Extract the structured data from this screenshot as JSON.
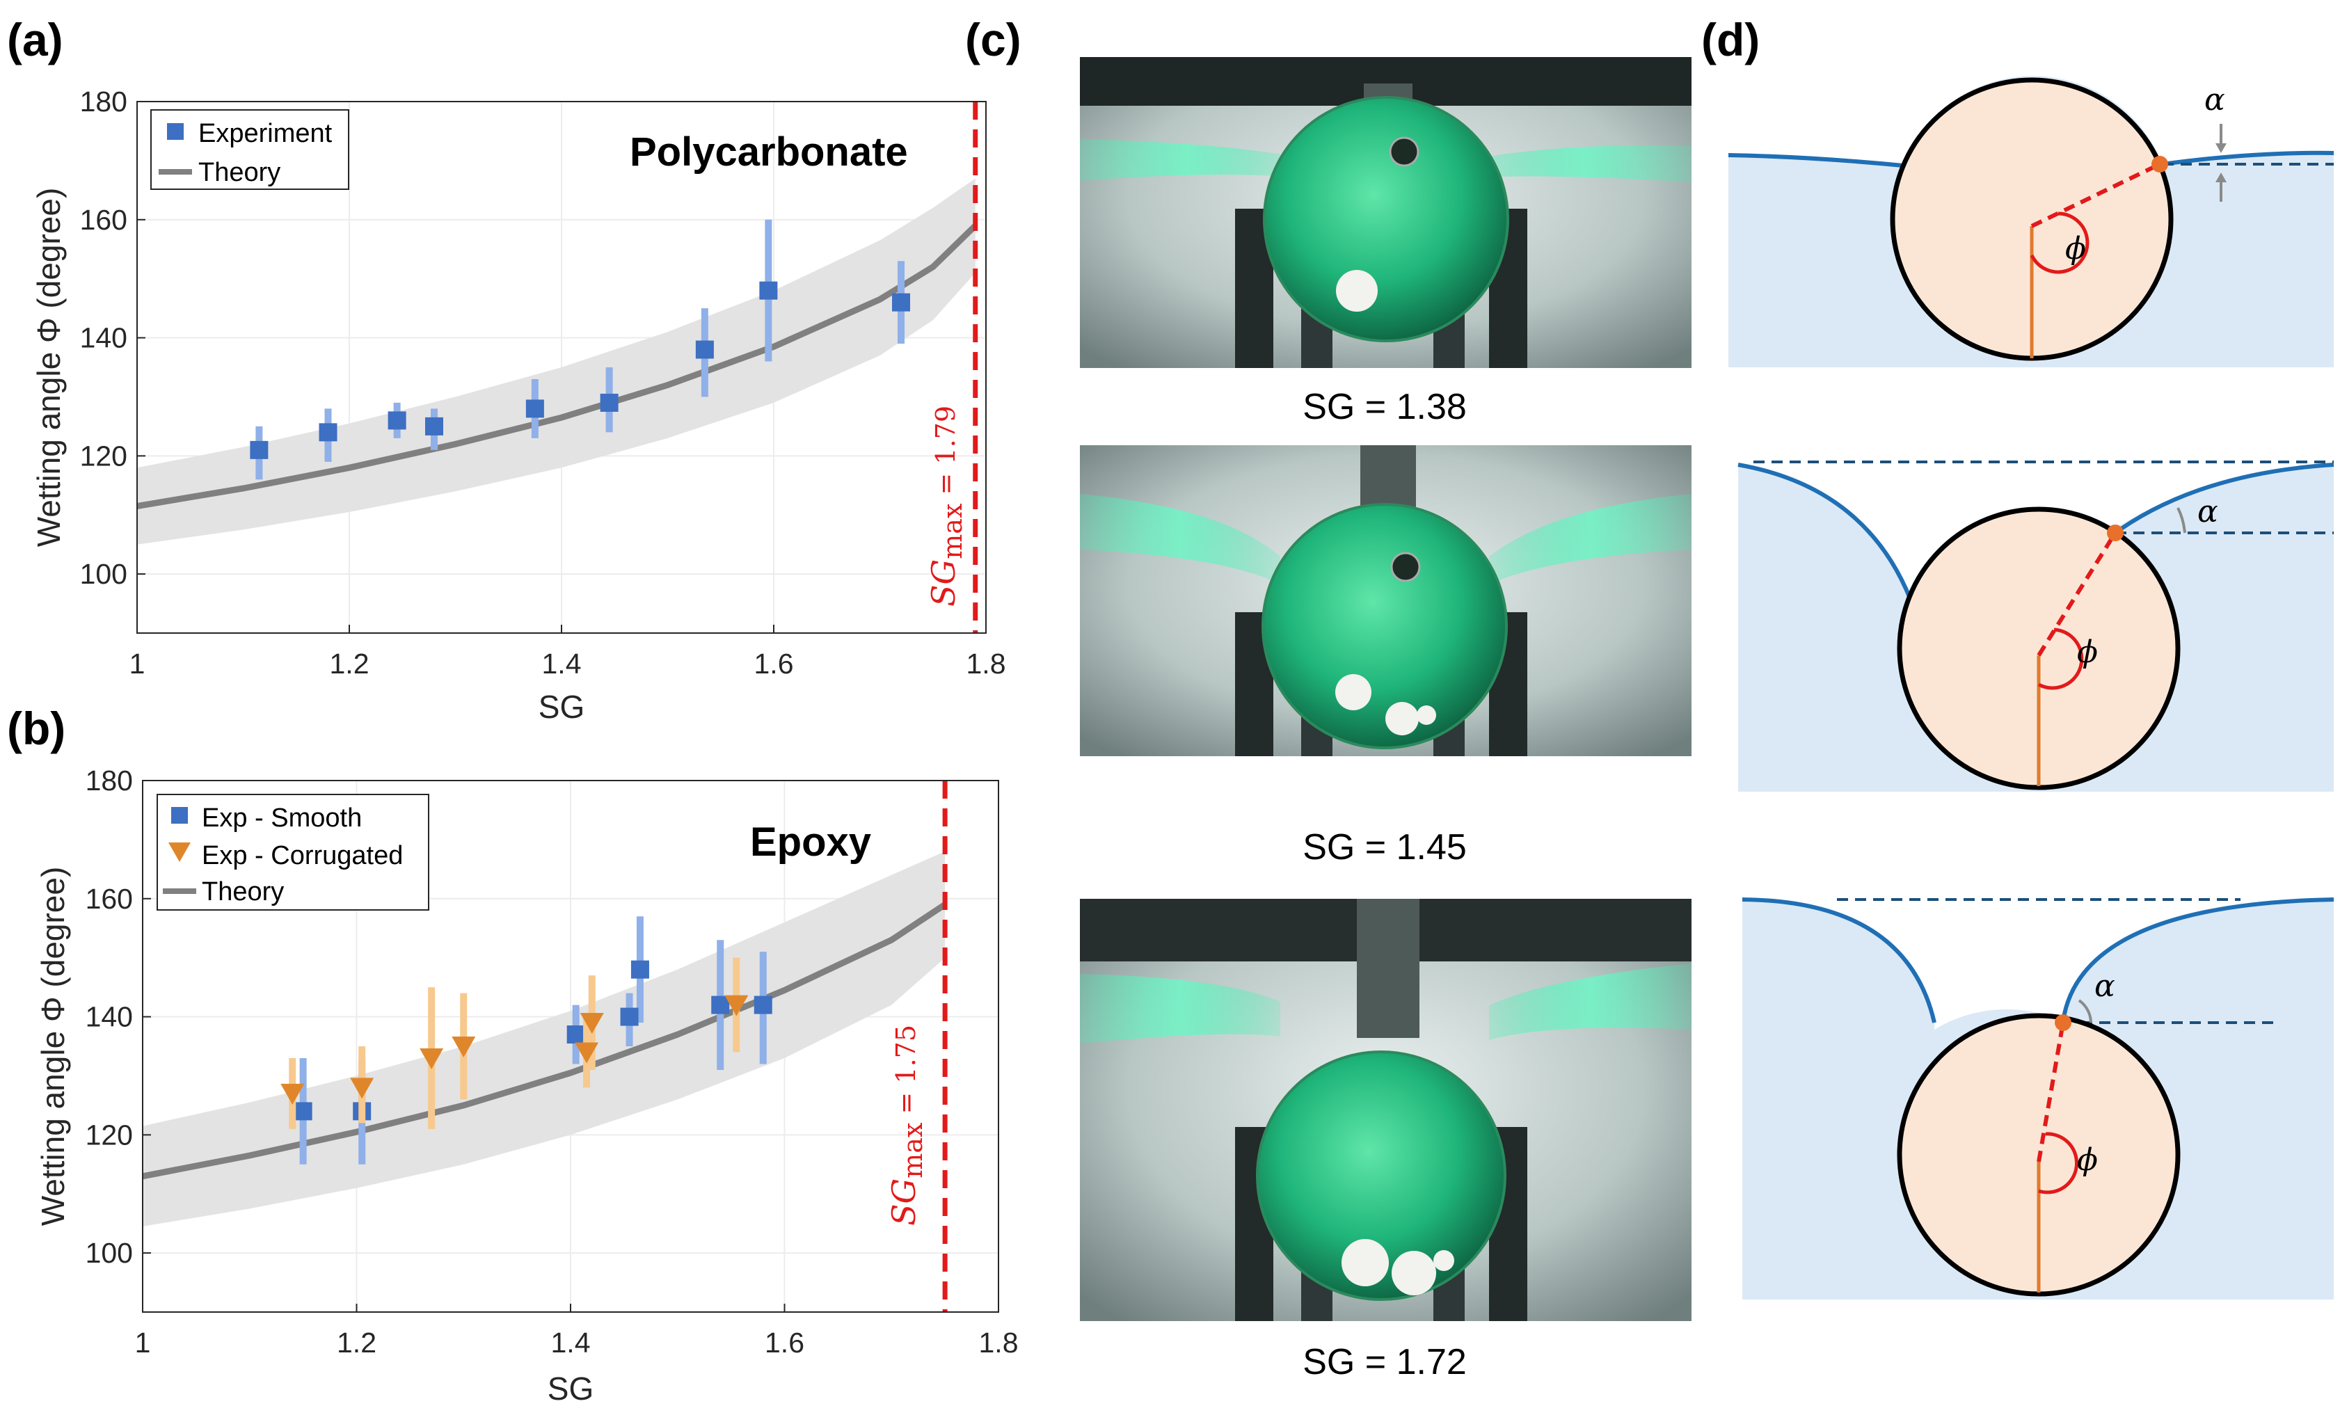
{
  "panels": {
    "a": "(a)",
    "b": "(b)",
    "c": "(c)",
    "d": "(d)"
  },
  "colors": {
    "experiment_marker": "#3d6fc2",
    "experiment_errorbar": "#8fb0e8",
    "corrugated_marker": "#e0862a",
    "corrugated_errorbar": "#f7c98e",
    "theory_line": "#808080",
    "theory_band": "#e3e3e3",
    "sgmax_line": "#e21a1a",
    "liquid": "#dbe9f6",
    "interface": "#1f6fb5",
    "sphere_fill": "#fbe6d6",
    "contact_point": "#e8702a",
    "dashed_reference": "#1c4f7a"
  },
  "chart_data": [
    {
      "type": "scatter",
      "panel": "a",
      "material_label": "Polycarbonate",
      "xlabel": "SG",
      "ylabel": "Wetting angle Φ (degree)",
      "xlim": [
        1,
        1.8
      ],
      "ylim": [
        90,
        180
      ],
      "xticks": [
        "1",
        "1.2",
        "1.4",
        "1.6",
        "1.8"
      ],
      "yticks": [
        "100",
        "120",
        "140",
        "160",
        "180"
      ],
      "grid": true,
      "legend_position": "top-left",
      "sgmax": {
        "x": 1.79,
        "label": "SG",
        "sub": "max",
        "value_text": " = 1.79"
      },
      "series": [
        {
          "name": "Experiment",
          "marker": "square",
          "points": [
            {
              "x": 1.115,
              "y": 121,
              "lo": 116,
              "hi": 125
            },
            {
              "x": 1.18,
              "y": 124,
              "lo": 119,
              "hi": 128
            },
            {
              "x": 1.245,
              "y": 126,
              "lo": 123,
              "hi": 129
            },
            {
              "x": 1.28,
              "y": 125,
              "lo": 121,
              "hi": 128
            },
            {
              "x": 1.375,
              "y": 128,
              "lo": 123,
              "hi": 133
            },
            {
              "x": 1.445,
              "y": 129,
              "lo": 124,
              "hi": 135
            },
            {
              "x": 1.535,
              "y": 138,
              "lo": 130,
              "hi": 145
            },
            {
              "x": 1.595,
              "y": 148,
              "lo": 136,
              "hi": 160
            },
            {
              "x": 1.72,
              "y": 146,
              "lo": 139,
              "hi": 153
            }
          ]
        },
        {
          "name": "Theory",
          "line": {
            "x": [
              1.0,
              1.1,
              1.2,
              1.3,
              1.4,
              1.5,
              1.6,
              1.7,
              1.75,
              1.79
            ],
            "y": [
              111.5,
              114.5,
              118,
              122,
              126.5,
              132,
              138.5,
              146.5,
              152,
              159
            ]
          },
          "band_lower": [
            105,
            107.5,
            110.5,
            114,
            118,
            123,
            129,
            137,
            143,
            151
          ],
          "band_upper": [
            118,
            121.5,
            125.5,
            130,
            135,
            141,
            148,
            156.5,
            162,
            167
          ]
        }
      ]
    },
    {
      "type": "scatter",
      "panel": "b",
      "material_label": "Epoxy",
      "xlabel": "SG",
      "ylabel": "Wetting angle Φ (degree)",
      "xlim": [
        1,
        1.8
      ],
      "ylim": [
        90,
        180
      ],
      "xticks": [
        "1",
        "1.2",
        "1.4",
        "1.6",
        "1.8"
      ],
      "yticks": [
        "100",
        "120",
        "140",
        "160",
        "180"
      ],
      "grid": true,
      "legend_position": "top-left",
      "sgmax": {
        "x": 1.75,
        "label": "SG",
        "sub": "max",
        "value_text": " = 1.75"
      },
      "series": [
        {
          "name": "Exp - Smooth",
          "marker": "square",
          "points": [
            {
              "x": 1.15,
              "y": 124,
              "lo": 115,
              "hi": 133
            },
            {
              "x": 1.205,
              "y": 124,
              "lo": 115,
              "hi": 133
            },
            {
              "x": 1.405,
              "y": 137,
              "lo": 132,
              "hi": 142
            },
            {
              "x": 1.455,
              "y": 140,
              "lo": 135,
              "hi": 144
            },
            {
              "x": 1.465,
              "y": 148,
              "lo": 139,
              "hi": 157
            },
            {
              "x": 1.54,
              "y": 142,
              "lo": 131,
              "hi": 153
            },
            {
              "x": 1.58,
              "y": 142,
              "lo": 132,
              "hi": 151
            }
          ]
        },
        {
          "name": "Exp - Corrugated",
          "marker": "triangle-down",
          "points": [
            {
              "x": 1.14,
              "y": 127,
              "lo": 121,
              "hi": 133
            },
            {
              "x": 1.205,
              "y": 128,
              "lo": 122,
              "hi": 135
            },
            {
              "x": 1.27,
              "y": 133,
              "lo": 121,
              "hi": 145
            },
            {
              "x": 1.3,
              "y": 135,
              "lo": 126,
              "hi": 144
            },
            {
              "x": 1.415,
              "y": 134,
              "lo": 128,
              "hi": 140
            },
            {
              "x": 1.42,
              "y": 139,
              "lo": 131,
              "hi": 147
            },
            {
              "x": 1.555,
              "y": 142,
              "lo": 134,
              "hi": 150
            }
          ]
        },
        {
          "name": "Theory",
          "line": {
            "x": [
              1.0,
              1.1,
              1.2,
              1.3,
              1.4,
              1.5,
              1.6,
              1.7,
              1.75
            ],
            "y": [
              113,
              116.5,
              120.5,
              125,
              130.5,
              137,
              144.5,
              153,
              159
            ]
          },
          "band_lower": [
            104.5,
            107.5,
            111,
            115,
            120,
            126,
            133,
            142,
            150
          ],
          "band_upper": [
            121.5,
            125.5,
            130,
            135,
            141,
            148,
            156,
            164,
            168
          ]
        }
      ]
    }
  ],
  "photos": {
    "captions": [
      "SG = 1.38",
      "SG = 1.45",
      "SG = 1.72"
    ]
  },
  "schematic": {
    "alpha_symbol": "α",
    "phi_symbol": "ϕ"
  }
}
